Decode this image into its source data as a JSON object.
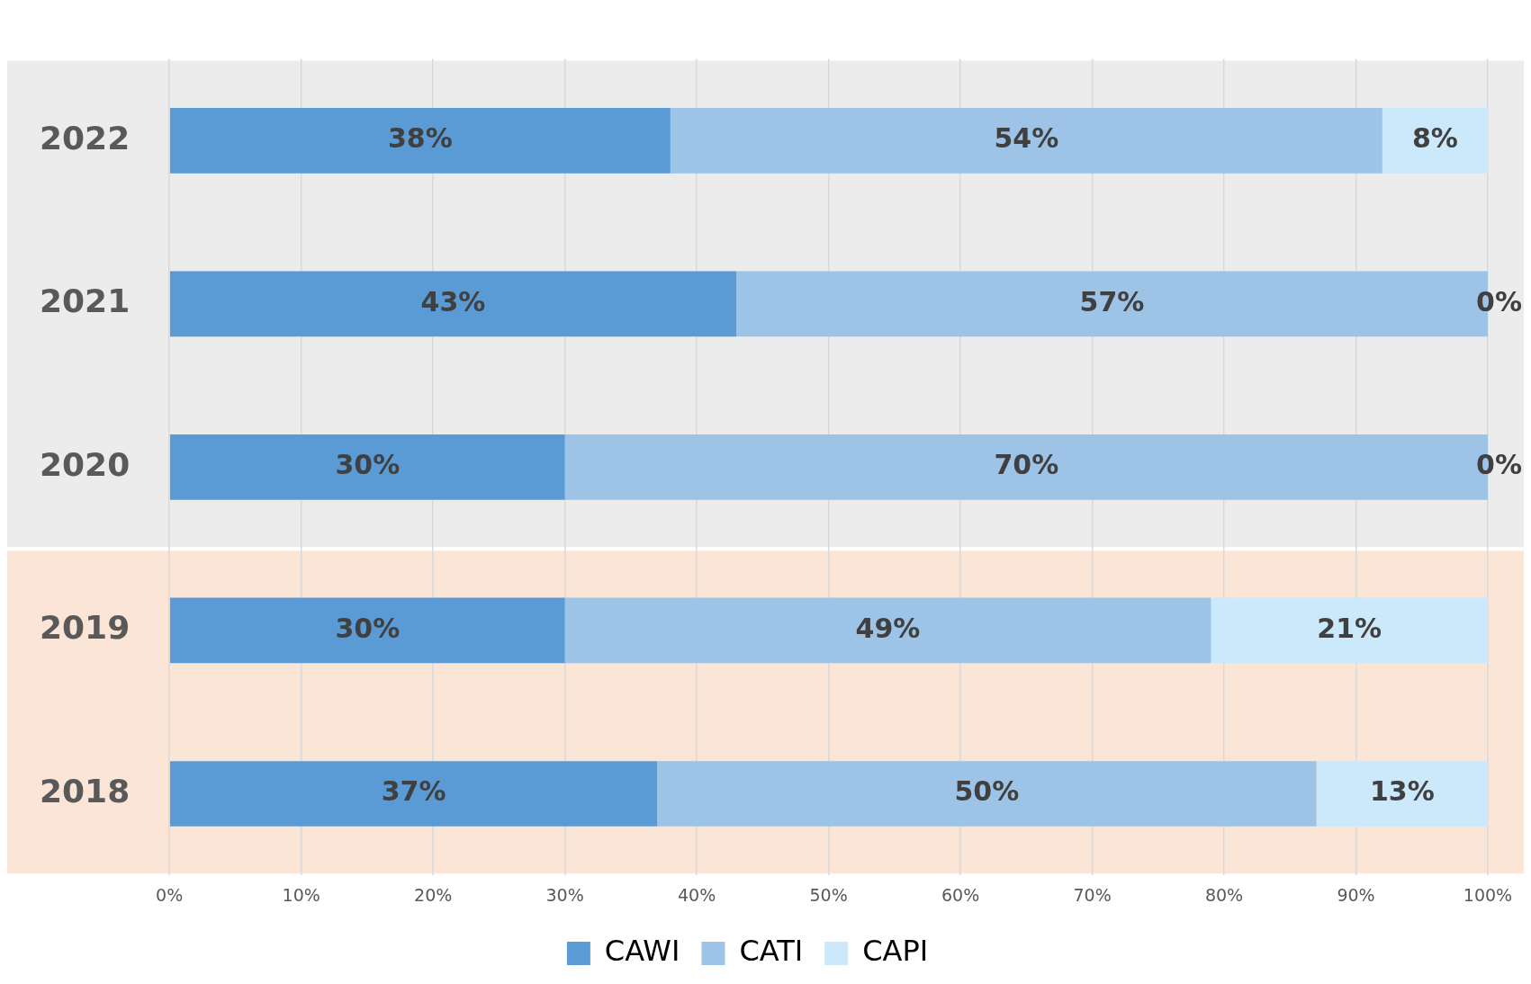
{
  "chart_data": {
    "type": "bar",
    "orientation": "horizontal",
    "stacked": true,
    "grid": "x",
    "legend": "bottom",
    "categories": [
      "2022",
      "2021",
      "2020",
      "2019",
      "2018"
    ],
    "series": [
      {
        "name": "CAWI",
        "color": "#5b9bd5",
        "values": [
          38,
          43,
          30,
          30,
          37
        ],
        "value_labels": [
          "38%",
          "43%",
          "30%",
          "30%",
          "37%"
        ]
      },
      {
        "name": "CATI",
        "color": "#9dc3e6",
        "values": [
          54,
          57,
          70,
          49,
          50
        ],
        "value_labels": [
          "54%",
          "57%",
          "70%",
          "49%",
          "50%"
        ]
      },
      {
        "name": "CAPI",
        "color": "#cce9fc",
        "values": [
          8,
          0,
          0,
          21,
          13
        ],
        "value_labels": [
          "8%",
          "0%",
          "0%",
          "21%",
          "13%"
        ]
      }
    ],
    "xlim": [
      0,
      100
    ],
    "xticks": [
      {
        "value": 0,
        "label": "0%"
      },
      {
        "value": 10,
        "label": "10%"
      },
      {
        "value": 20,
        "label": "20%"
      },
      {
        "value": 30,
        "label": "30%"
      },
      {
        "value": 40,
        "label": "40%"
      },
      {
        "value": 50,
        "label": "50%"
      },
      {
        "value": 60,
        "label": "60%"
      },
      {
        "value": 70,
        "label": "70%"
      },
      {
        "value": 80,
        "label": "80%"
      },
      {
        "value": 90,
        "label": "90%"
      },
      {
        "value": 100,
        "label": "100%"
      }
    ],
    "bands": [
      {
        "axis": "y",
        "from": "2022",
        "to": "2020",
        "color": "#ececec"
      },
      {
        "axis": "y",
        "from": "2019",
        "to": "2018",
        "color": "#fbe5d6"
      }
    ]
  }
}
